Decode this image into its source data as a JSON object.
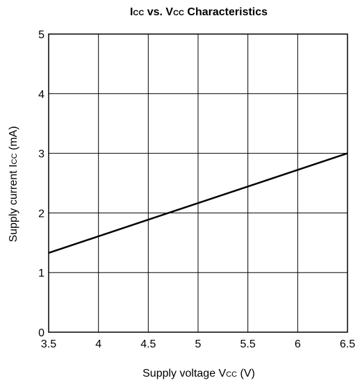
{
  "chart_data": {
    "type": "line",
    "title": {
      "main_a": "I",
      "sub_a": "CC",
      "mid": " vs. V",
      "sub_b": "CC",
      "rest": " Characteristics"
    },
    "xlabel": {
      "pre": "Supply voltage V",
      "sub": "CC",
      "post": " (V)"
    },
    "ylabel": {
      "pre": "Supply current I",
      "sub": "CC",
      "post": " (mA)"
    },
    "xlim": [
      3.5,
      6.5
    ],
    "ylim": [
      0,
      5
    ],
    "x_ticks": [
      "3.5",
      "4",
      "4.5",
      "5",
      "5.5",
      "6",
      "6.5"
    ],
    "y_ticks": [
      "0",
      "1",
      "2",
      "3",
      "4",
      "5"
    ],
    "grid": true,
    "series": [
      {
        "x": [
          3.5,
          6.5
        ],
        "y": [
          1.33,
          3.0
        ]
      }
    ],
    "colors": {
      "line": "#000000",
      "grid": "#000000",
      "frame": "#000000"
    }
  }
}
